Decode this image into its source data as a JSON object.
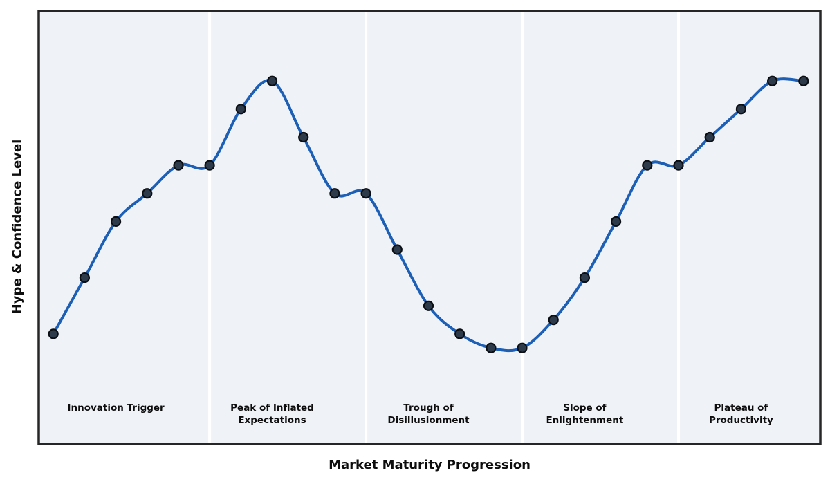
{
  "chart_data": {
    "type": "line",
    "title": "",
    "xlabel": "Market Maturity Progression",
    "ylabel": "Hype & Confidence Level",
    "series_name": "hype-curve",
    "x": [
      0,
      1,
      2,
      3,
      4,
      5,
      6,
      7,
      8,
      9,
      10,
      11,
      12,
      13,
      14,
      15,
      16,
      17,
      18,
      19,
      20,
      21,
      22,
      23,
      24
    ],
    "values": [
      10,
      30,
      50,
      60,
      70,
      70,
      90,
      100,
      80,
      60,
      60,
      40,
      20,
      10,
      5,
      5,
      15,
      30,
      50,
      70,
      70,
      80,
      90,
      100,
      100
    ],
    "marker": "circle",
    "grid": false,
    "legend": null,
    "axis_ticks": "none",
    "separators_at_x": [
      5,
      10,
      15,
      20
    ],
    "phases": [
      {
        "id": "innovation-trigger",
        "lines": [
          "Innovation Trigger"
        ],
        "start": 0,
        "end": 4
      },
      {
        "id": "peak-of-inflated-expectations",
        "lines": [
          "Peak of Inflated",
          "Expectations"
        ],
        "start": 5,
        "end": 9
      },
      {
        "id": "trough-of-disillusionment",
        "lines": [
          "Trough of",
          "Disillusionment"
        ],
        "start": 10,
        "end": 14
      },
      {
        "id": "slope-of-enlightenment",
        "lines": [
          "Slope of",
          "Enlightenment"
        ],
        "start": 15,
        "end": 19
      },
      {
        "id": "plateau-of-productivity",
        "lines": [
          "Plateau of",
          "Productivity"
        ],
        "start": 20,
        "end": 24
      }
    ],
    "style": {
      "line_color": "#1c5fb5",
      "marker_fill": "#2d3a4a",
      "marker_edge": "#0b0f14",
      "plot_bg": "#eff3f8",
      "page_bg": "#ffffff",
      "spine_color": "#262626",
      "separator_color": "#ffffff",
      "label_color": "#0d0d0d"
    }
  }
}
